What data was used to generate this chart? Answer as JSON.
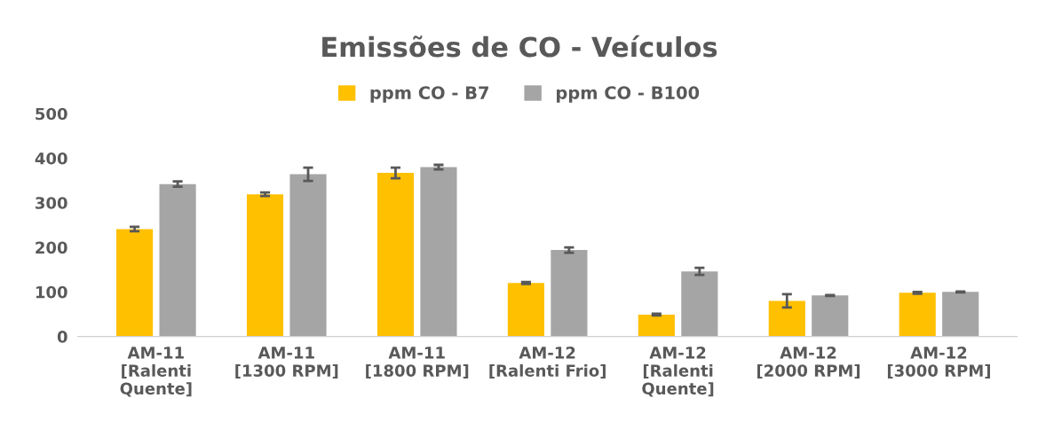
{
  "chart_data": {
    "type": "bar",
    "title": "Emissões de CO - Veículos",
    "categories": [
      "AM-11\n[Ralenti\nQuente]",
      "AM-11\n[1300 RPM]",
      "AM-11\n[1800 RPM]",
      "AM-12\n[Ralenti Frio]",
      "AM-12\n[Ralenti\nQuente]",
      "AM-12\n[2000 RPM]",
      "AM-12\n[3000 RPM]"
    ],
    "series": [
      {
        "name": "ppm CO - B7",
        "color": "#ffc000",
        "values": [
          241,
          319,
          367,
          120,
          49,
          80,
          98
        ],
        "errors": [
          5,
          4,
          12,
          2,
          2,
          15,
          2
        ]
      },
      {
        "name": "ppm CO - B100",
        "color": "#a5a5a5",
        "values": [
          342,
          364,
          380,
          194,
          146,
          92,
          100
        ],
        "errors": [
          6,
          15,
          5,
          6,
          8,
          1,
          1
        ]
      }
    ],
    "ylim": [
      0,
      500
    ],
    "yticks": [
      0,
      100,
      200,
      300,
      400,
      500
    ],
    "grid": false,
    "legend": "top"
  }
}
